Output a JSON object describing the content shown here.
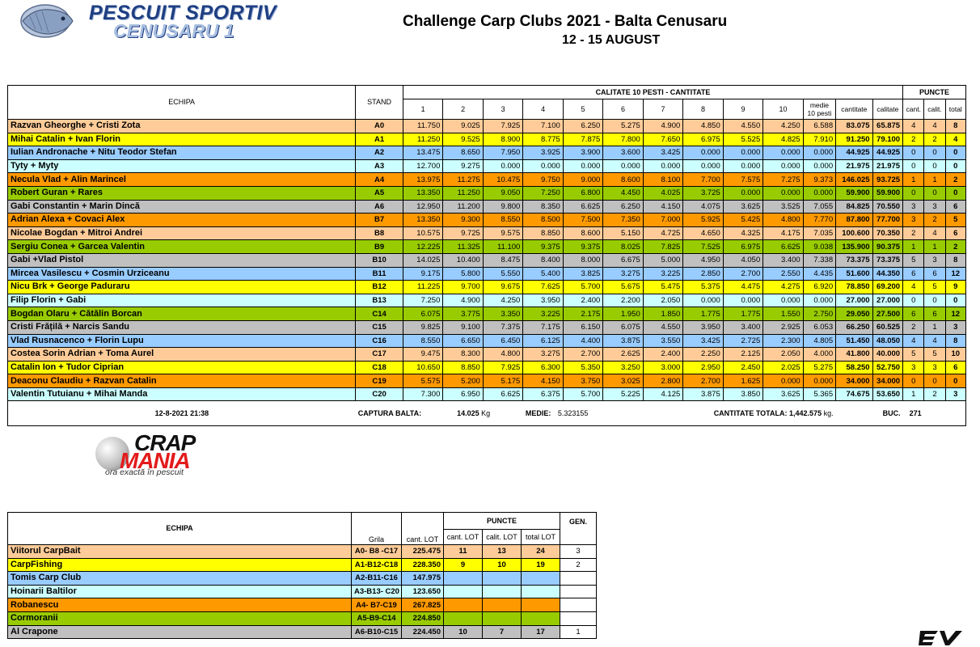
{
  "logo": {
    "line1": "PESCUIT SPORTIV",
    "line2": "CENUSARU 1"
  },
  "header": {
    "title": "Challenge Carp Clubs 2021 - Balta Cenusaru",
    "dates": "12 - 15 AUGUST"
  },
  "main_table": {
    "headers": {
      "echipa": "ECHIPA",
      "stand": "STAND",
      "calitate_group": "CALITATE 10 PESTI - CANTITATE",
      "puncte_group": "PUNCTE",
      "fish_cols": [
        "1",
        "2",
        "3",
        "4",
        "5",
        "6",
        "7",
        "8",
        "9",
        "10"
      ],
      "medie": "medie 10 pesti",
      "cantitate": "cantitate",
      "calitate": "calitate",
      "cant": "cant.",
      "calit": "calit.",
      "total": "total"
    },
    "rows": [
      {
        "name": "Razvan Gheorghe + Cristi Zota",
        "stand": "A0",
        "color": "peach",
        "f": [
          "11.750",
          "9.025",
          "7.925",
          "7.100",
          "6.250",
          "5.275",
          "4.900",
          "4.850",
          "4.550",
          "4.250"
        ],
        "medie": "6.588",
        "cantitate": "83.075",
        "calitate": "65.875",
        "cant": "4",
        "calit": "4",
        "total": "8"
      },
      {
        "name": "Mihai Catalin + Ivan Florin",
        "stand": "A1",
        "color": "yellow",
        "f": [
          "11.250",
          "9.525",
          "8.900",
          "8.775",
          "7.875",
          "7.800",
          "7.650",
          "6.975",
          "5.525",
          "4.825"
        ],
        "medie": "7.910",
        "cantitate": "91.250",
        "calitate": "79.100",
        "cant": "2",
        "calit": "2",
        "total": "4"
      },
      {
        "name": "Iulian Andronache + Nitu Teodor Stefan",
        "stand": "A2",
        "color": "blue",
        "f": [
          "13.475",
          "8.650",
          "7.950",
          "3.925",
          "3.900",
          "3.600",
          "3.425",
          "0.000",
          "0.000",
          "0.000"
        ],
        "medie": "0.000",
        "cantitate": "44.925",
        "calitate": "44.925",
        "cant": "0",
        "calit": "0",
        "total": "0"
      },
      {
        "name": "Tyty + Myty",
        "stand": "A3",
        "color": "cyan",
        "f": [
          "12.700",
          "9.275",
          "0.000",
          "0.000",
          "0.000",
          "0.000",
          "0.000",
          "0.000",
          "0.000",
          "0.000"
        ],
        "medie": "0.000",
        "cantitate": "21.975",
        "calitate": "21.975",
        "cant": "0",
        "calit": "0",
        "total": "0"
      },
      {
        "name": "Necula Vlad + Alin Marincel",
        "stand": "A4",
        "color": "orange",
        "f": [
          "13.975",
          "11.275",
          "10.475",
          "9.750",
          "9.000",
          "8.600",
          "8.100",
          "7.700",
          "7.575",
          "7.275"
        ],
        "medie": "9.373",
        "cantitate": "146.025",
        "calitate": "93.725",
        "cant": "1",
        "calit": "1",
        "total": "2"
      },
      {
        "name": "Robert Guran + Rares",
        "stand": "A5",
        "color": "green",
        "f": [
          "13.350",
          "11.250",
          "9.050",
          "7.250",
          "6.800",
          "4.450",
          "4.025",
          "3.725",
          "0.000",
          "0.000"
        ],
        "medie": "0.000",
        "cantitate": "59.900",
        "calitate": "59.900",
        "cant": "0",
        "calit": "0",
        "total": "0"
      },
      {
        "name": "Gabi Constantin + Marin Dincă",
        "stand": "A6",
        "color": "gray",
        "f": [
          "12.950",
          "11.200",
          "9.800",
          "8.350",
          "6.625",
          "6.250",
          "4.150",
          "4.075",
          "3.625",
          "3.525"
        ],
        "medie": "7.055",
        "cantitate": "84.825",
        "calitate": "70.550",
        "cant": "3",
        "calit": "3",
        "total": "6"
      },
      {
        "name": "Adrian Alexa + Covaci Alex",
        "stand": "B7",
        "color": "orange",
        "f": [
          "13.350",
          "9.300",
          "8.550",
          "8.500",
          "7.500",
          "7.350",
          "7.000",
          "5.925",
          "5.425",
          "4.800"
        ],
        "medie": "7.770",
        "cantitate": "87.800",
        "calitate": "77.700",
        "cant": "3",
        "calit": "2",
        "total": "5"
      },
      {
        "name": "Nicolae Bogdan + Mitroi Andrei",
        "stand": "B8",
        "color": "peach",
        "f": [
          "10.575",
          "9.725",
          "9.575",
          "8.850",
          "8.600",
          "5.150",
          "4.725",
          "4.650",
          "4.325",
          "4.175"
        ],
        "medie": "7.035",
        "cantitate": "100.600",
        "calitate": "70.350",
        "cant": "2",
        "calit": "4",
        "total": "6"
      },
      {
        "name": "Sergiu Conea + Garcea Valentin",
        "stand": "B9",
        "color": "green",
        "f": [
          "12.225",
          "11.325",
          "11.100",
          "9.375",
          "9.375",
          "8.025",
          "7.825",
          "7.525",
          "6.975",
          "6.625"
        ],
        "medie": "9.038",
        "cantitate": "135.900",
        "calitate": "90.375",
        "cant": "1",
        "calit": "1",
        "total": "2"
      },
      {
        "name": "Gabi +Vlad Pistol",
        "stand": "B10",
        "color": "gray",
        "f": [
          "14.025",
          "10.400",
          "8.475",
          "8.400",
          "8.000",
          "6.675",
          "5.000",
          "4.950",
          "4.050",
          "3.400"
        ],
        "medie": "7.338",
        "cantitate": "73.375",
        "calitate": "73.375",
        "cant": "5",
        "calit": "3",
        "total": "8"
      },
      {
        "name": "Mircea Vasilescu + Cosmin Urziceanu",
        "stand": "B11",
        "color": "blue",
        "f": [
          "9.175",
          "5.800",
          "5.550",
          "5.400",
          "3.825",
          "3.275",
          "3.225",
          "2.850",
          "2.700",
          "2.550"
        ],
        "medie": "4.435",
        "cantitate": "51.600",
        "calitate": "44.350",
        "cant": "6",
        "calit": "6",
        "total": "12"
      },
      {
        "name": "Nicu Brk + George Paduraru",
        "stand": "B12",
        "color": "yellow",
        "f": [
          "11.225",
          "9.700",
          "9.675",
          "7.625",
          "5.700",
          "5.675",
          "5.475",
          "5.375",
          "4.475",
          "4.275"
        ],
        "medie": "6.920",
        "cantitate": "78.850",
        "calitate": "69.200",
        "cant": "4",
        "calit": "5",
        "total": "9"
      },
      {
        "name": "Filip Florin + Gabi",
        "stand": "B13",
        "color": "cyan",
        "f": [
          "7.250",
          "4.900",
          "4.250",
          "3.950",
          "2.400",
          "2.200",
          "2.050",
          "0.000",
          "0.000",
          "0.000"
        ],
        "medie": "0.000",
        "cantitate": "27.000",
        "calitate": "27.000",
        "cant": "0",
        "calit": "0",
        "total": "0"
      },
      {
        "name": "Bogdan Olaru + Cătălin Borcan",
        "stand": "C14",
        "color": "green",
        "f": [
          "6.075",
          "3.775",
          "3.350",
          "3.225",
          "2.175",
          "1.950",
          "1.850",
          "1.775",
          "1.775",
          "1.550"
        ],
        "medie": "2.750",
        "cantitate": "29.050",
        "calitate": "27.500",
        "cant": "6",
        "calit": "6",
        "total": "12"
      },
      {
        "name": "Cristi Frățilă + Narcis Sandu",
        "stand": "C15",
        "color": "gray",
        "f": [
          "9.825",
          "9.100",
          "7.375",
          "7.175",
          "6.150",
          "6.075",
          "4.550",
          "3.950",
          "3.400",
          "2.925"
        ],
        "medie": "6.053",
        "cantitate": "66.250",
        "calitate": "60.525",
        "cant": "2",
        "calit": "1",
        "total": "3"
      },
      {
        "name": "Vlad Rusnacenco + Florin Lupu",
        "stand": "C16",
        "color": "blue",
        "f": [
          "8.550",
          "6.650",
          "6.450",
          "6.125",
          "4.400",
          "3.875",
          "3.550",
          "3.425",
          "2.725",
          "2.300"
        ],
        "medie": "4.805",
        "cantitate": "51.450",
        "calitate": "48.050",
        "cant": "4",
        "calit": "4",
        "total": "8"
      },
      {
        "name": "Costea Sorin Adrian + Toma Aurel",
        "stand": "C17",
        "color": "peach",
        "f": [
          "9.475",
          "8.300",
          "4.800",
          "3.275",
          "2.700",
          "2.625",
          "2.400",
          "2.250",
          "2.125",
          "2.050"
        ],
        "medie": "4.000",
        "cantitate": "41.800",
        "calitate": "40.000",
        "cant": "5",
        "calit": "5",
        "total": "10"
      },
      {
        "name": "Catalin Ion + Tudor Ciprian",
        "stand": "C18",
        "color": "yellow",
        "f": [
          "10.650",
          "8.850",
          "7.925",
          "6.300",
          "5.350",
          "3.250",
          "3.000",
          "2.950",
          "2.450",
          "2.025"
        ],
        "medie": "5.275",
        "cantitate": "58.250",
        "calitate": "52.750",
        "cant": "3",
        "calit": "3",
        "total": "6"
      },
      {
        "name": "Deaconu Claudiu + Razvan Catalin",
        "stand": "C19",
        "color": "orange",
        "f": [
          "5.575",
          "5.200",
          "5.175",
          "4.150",
          "3.750",
          "3.025",
          "2.800",
          "2.700",
          "1.625",
          "0.000"
        ],
        "medie": "0.000",
        "cantitate": "34.000",
        "calitate": "34.000",
        "cant": "0",
        "calit": "0",
        "total": "0"
      },
      {
        "name": "Valentin Tutuianu + Mihai Manda",
        "stand": "C20",
        "color": "cyan",
        "f": [
          "7.300",
          "6.950",
          "6.625",
          "6.375",
          "5.700",
          "5.225",
          "4.125",
          "3.875",
          "3.850",
          "3.625"
        ],
        "medie": "5.365",
        "cantitate": "74.675",
        "calitate": "53.650",
        "cant": "1",
        "calit": "2",
        "total": "3"
      }
    ],
    "footer": {
      "datetime": "12-8-2021 21:38",
      "captura_label": "CAPTURA BALTA:",
      "captura_value": "14.025",
      "captura_unit": "Kg",
      "medie_label": "MEDIE:",
      "medie_value": "5.323155",
      "total_label": "CANTITATE TOTALA:",
      "total_value": "1,442.575",
      "total_unit": "kg.",
      "buc_label": "BUC.",
      "buc_value": "271"
    }
  },
  "crapmania": {
    "w1": "CRAP",
    "w2": "MANIA",
    "tagline": "ora exactă în pescuit"
  },
  "team_table": {
    "headers": {
      "echipa": "ECHIPA",
      "grila": "Grila",
      "cant_lot": "cant. LOT",
      "puncte": "PUNCTE",
      "p_cant": "cant. LOT",
      "p_calit": "calit. LOT",
      "p_total": "total LOT",
      "gen": "GEN."
    },
    "rows": [
      {
        "name": "Viitorul CarpBait",
        "grila": "A0- B8 -C17",
        "cant": "225.475",
        "pc": "11",
        "pq": "13",
        "pt": "24",
        "gen": "3",
        "color": "peach"
      },
      {
        "name": "CarpFishing",
        "grila": "A1-B12-C18",
        "cant": "228.350",
        "pc": "9",
        "pq": "10",
        "pt": "19",
        "gen": "2",
        "color": "yellow"
      },
      {
        "name": "Tomis Carp Club",
        "grila": "A2-B11-C16",
        "cant": "147.975",
        "pc": "",
        "pq": "",
        "pt": "",
        "gen": "",
        "color": "blue"
      },
      {
        "name": "Hoinarii Baltilor",
        "grila": "A3-B13- C20",
        "cant": "123.650",
        "pc": "",
        "pq": "",
        "pt": "",
        "gen": "",
        "color": "cyan"
      },
      {
        "name": "Robanescu",
        "grila": "A4- B7-C19",
        "cant": "267.825",
        "pc": "",
        "pq": "",
        "pt": "",
        "gen": "",
        "color": "orange"
      },
      {
        "name": "Cormoranii",
        "grila": "A5-B9-C14",
        "cant": "224.850",
        "pc": "",
        "pq": "",
        "pt": "",
        "gen": "",
        "color": "green"
      },
      {
        "name": "Al Crapone",
        "grila": "A6-B10-C15",
        "cant": "224.450",
        "pc": "10",
        "pq": "7",
        "pt": "17",
        "gen": "1",
        "color": "gray"
      }
    ]
  }
}
